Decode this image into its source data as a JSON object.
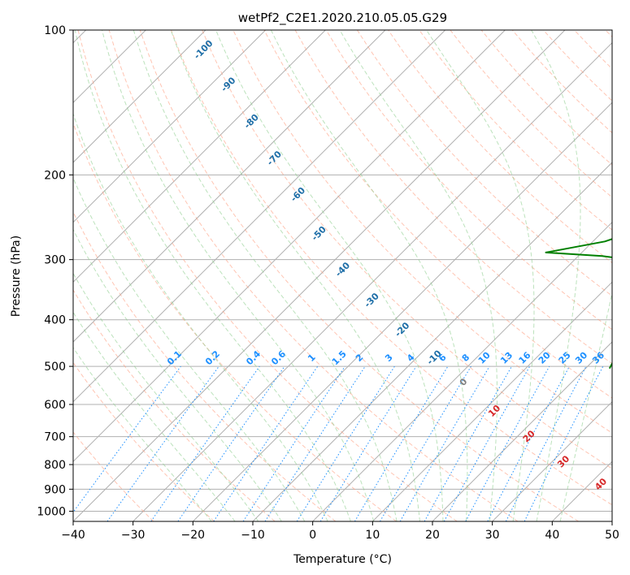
{
  "chart_data": {
    "type": "line",
    "title": "wetPf2_C2E1.2020.210.05.05.G29",
    "xlabel": "Temperature (°C)",
    "ylabel": "Pressure (hPa)",
    "xlim": [
      -40,
      50
    ],
    "ylim": [
      1050,
      100
    ],
    "y_scale": "log",
    "grid": true,
    "x_ticks": [
      -40,
      -30,
      -20,
      -10,
      0,
      10,
      20,
      30,
      40,
      50
    ],
    "y_ticks": [
      100,
      200,
      300,
      400,
      500,
      600,
      700,
      800,
      900,
      1000
    ],
    "series": [
      {
        "color": "#ff0000",
        "points": [
          [
            29,
            508
          ],
          [
            26,
            470
          ],
          [
            25,
            450
          ],
          [
            24,
            420
          ],
          [
            22,
            400
          ],
          [
            21,
            380
          ],
          [
            20.5,
            355
          ],
          [
            20,
            335
          ],
          [
            21,
            315
          ],
          [
            21,
            300
          ],
          [
            19,
            275
          ],
          [
            16,
            250
          ],
          [
            13,
            225
          ],
          [
            10,
            195
          ],
          [
            7,
            170
          ],
          [
            5,
            150
          ],
          [
            5,
            135
          ],
          [
            6,
            120
          ],
          [
            6,
            110
          ],
          [
            6,
            100
          ]
        ]
      },
      {
        "color": "#008000",
        "points": [
          [
            24,
            505
          ],
          [
            23.5,
            490
          ],
          [
            23.5,
            470
          ],
          [
            23,
            450
          ],
          [
            21,
            430
          ],
          [
            20,
            410
          ],
          [
            19,
            395
          ],
          [
            18,
            380
          ],
          [
            19,
            360
          ],
          [
            17,
            345
          ],
          [
            18,
            330
          ],
          [
            14,
            305
          ],
          [
            4,
            295
          ],
          [
            -6,
            290
          ],
          [
            -5,
            288
          ],
          [
            2,
            275
          ],
          [
            6,
            260
          ],
          [
            8,
            245
          ],
          [
            7,
            225
          ],
          [
            4,
            205
          ],
          [
            2,
            185
          ],
          [
            1,
            165
          ],
          [
            0,
            145
          ],
          [
            -2,
            130
          ],
          [
            -1,
            115
          ],
          [
            1,
            105
          ],
          [
            3,
            100
          ]
        ]
      }
    ],
    "dry_adiabat_labels": [
      "-100",
      "-90",
      "-80",
      "-70",
      "-60",
      "-50",
      "-40",
      "-30",
      "-20",
      "-10"
    ],
    "mixing_ratio_labels": [
      "0.1",
      "0.2",
      "0.4",
      "0.6",
      "1",
      "1.5",
      "2",
      "3",
      "4",
      "6",
      "8",
      "10",
      "13",
      "16",
      "20",
      "25",
      "30",
      "36"
    ],
    "isotherm_labels": [
      "0",
      "10",
      "20",
      "30",
      "40"
    ],
    "colors": {
      "temperature": "#ff0000",
      "dewpoint": "#008000",
      "mixing_ratio": "#1e90ff",
      "dry_adiabat": "#1f6fa8",
      "isotherm_label_zero": "#808080",
      "isotherm_label": "#d62728"
    }
  }
}
